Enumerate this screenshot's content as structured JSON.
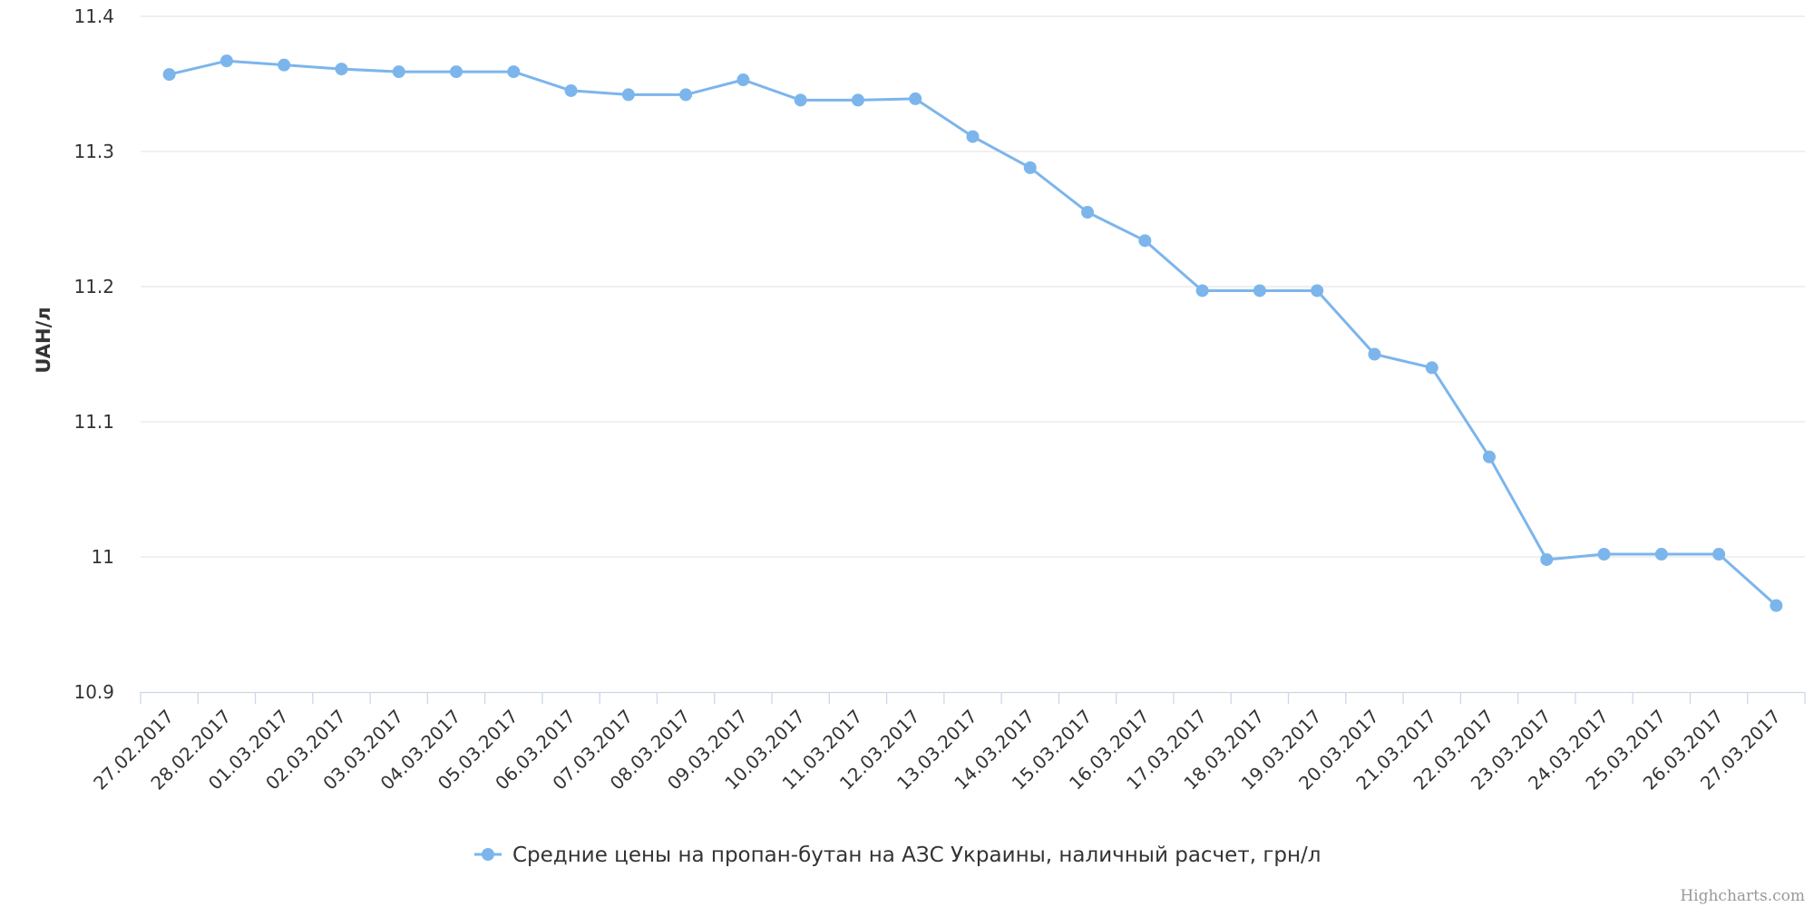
{
  "chart_data": {
    "type": "line",
    "title": "",
    "xlabel": "",
    "ylabel": "UAH/л",
    "ylim": [
      10.9,
      11.4
    ],
    "y_ticks": [
      "10.9",
      "11",
      "11.1",
      "11.2",
      "11.3",
      "11.4"
    ],
    "grid": true,
    "legend_position": "bottom-center",
    "categories": [
      "27.02.2017",
      "28.02.2017",
      "01.03.2017",
      "02.03.2017",
      "03.03.2017",
      "04.03.2017",
      "05.03.2017",
      "06.03.2017",
      "07.03.2017",
      "08.03.2017",
      "09.03.2017",
      "10.03.2017",
      "11.03.2017",
      "12.03.2017",
      "13.03.2017",
      "14.03.2017",
      "15.03.2017",
      "16.03.2017",
      "17.03.2017",
      "18.03.2017",
      "19.03.2017",
      "20.03.2017",
      "21.03.2017",
      "22.03.2017",
      "23.03.2017",
      "24.03.2017",
      "25.03.2017",
      "26.03.2017",
      "27.03.2017"
    ],
    "series": [
      {
        "name": "Средние цены на пропан-бутан на АЗС Украины, наличный расчет, грн/л",
        "color": "#7cb5ec",
        "values": [
          11.357,
          11.367,
          11.364,
          11.361,
          11.359,
          11.359,
          11.359,
          11.345,
          11.342,
          11.342,
          11.353,
          11.338,
          11.338,
          11.339,
          11.311,
          11.288,
          11.255,
          11.234,
          11.197,
          11.197,
          11.197,
          11.15,
          11.14,
          11.074,
          10.998,
          11.002,
          11.002,
          11.002,
          10.964
        ]
      }
    ]
  },
  "credits": "Highcharts.com"
}
